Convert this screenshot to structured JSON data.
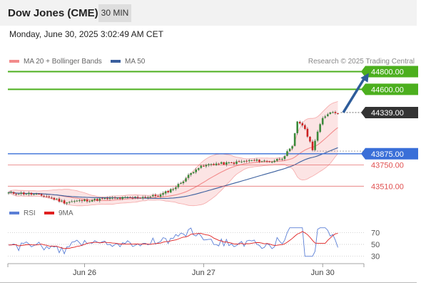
{
  "header": {
    "title": "Dow Jones (CME)",
    "timeframe": "30 MIN"
  },
  "datetime": "Monday, June 30, 2025 3:02:49 AM CET",
  "legend": {
    "ma20": {
      "label": "MA 20 + Bollinger Bands",
      "color": "#f28b8b"
    },
    "ma50": {
      "label": "MA 50",
      "color": "#3a5f9e"
    }
  },
  "copyright": "Research © 2025 Trading Central",
  "rsi_legend": {
    "rsi": {
      "label": "RSI",
      "color": "#5b7fd6"
    },
    "ma9": {
      "label": "9MA",
      "color": "#e02020"
    }
  },
  "colors": {
    "resistance": "#4caf1e",
    "support": "#3a6fd8",
    "levels_red": "#e05050",
    "candle_up": "#3a8a3a",
    "candle_down": "#cc2222",
    "arrow": "#2e5c9a",
    "current_badge": "#333333"
  },
  "chart_data": [
    {
      "type": "candlestick",
      "title": "Dow Jones (CME)",
      "ylim": [
        43280,
        44900
      ],
      "x_ticks": [
        {
          "label": "Jun 26",
          "index": 30
        },
        {
          "label": "Jun 27",
          "index": 77
        },
        {
          "label": "Jun 30",
          "index": 124
        }
      ],
      "levels": [
        {
          "value": 44800,
          "label": "44800.00",
          "kind": "resistance"
        },
        {
          "value": 44600,
          "label": "44600.00",
          "kind": "resistance"
        },
        {
          "value": 44339,
          "label": "44339.00",
          "kind": "current"
        },
        {
          "value": 43875,
          "label": "43875.00",
          "kind": "support"
        },
        {
          "value": 43750,
          "label": "43750.00",
          "kind": "level"
        },
        {
          "value": 43510,
          "label": "43510.00",
          "kind": "level"
        }
      ],
      "target_arrow": {
        "from_index": 131,
        "from_value": 44339,
        "to_index": 138,
        "to_value": 44800
      }
    },
    {
      "type": "line",
      "title": "RSI",
      "ylim": [
        20,
        80
      ],
      "y_ticks": [
        70,
        50,
        30
      ],
      "series": [
        {
          "name": "RSI",
          "color": "#5b7fd6"
        },
        {
          "name": "9MA",
          "color": "#e02020"
        }
      ]
    }
  ]
}
